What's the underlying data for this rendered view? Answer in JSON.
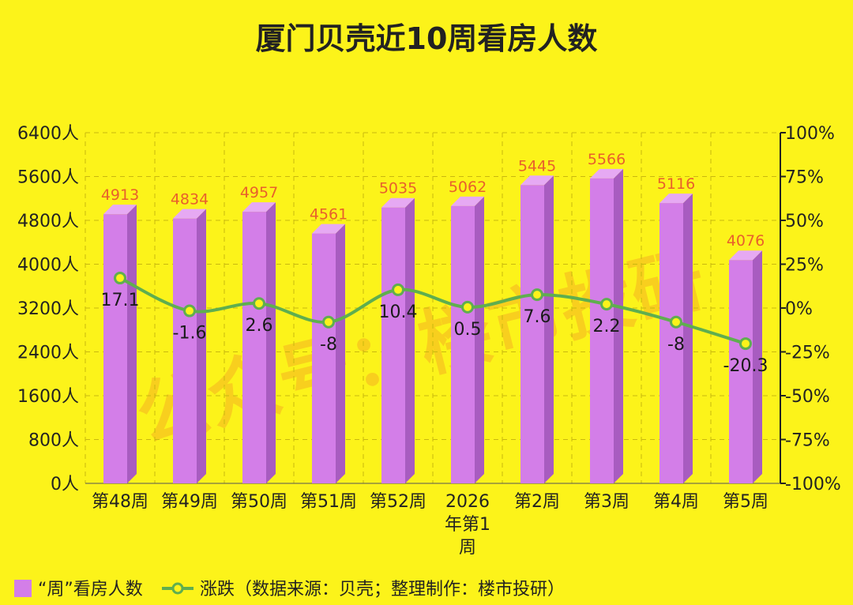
{
  "chart_data": {
    "type": "bar",
    "title": "厦门贝壳近10周看房人数",
    "categories": [
      "第48周",
      "第49周",
      "第50周",
      "第51周",
      "第52周",
      "2026\n年第1\n周",
      "第2周",
      "第3周",
      "第4周",
      "第5周"
    ],
    "category_lines": [
      [
        "第48周"
      ],
      [
        "第49周"
      ],
      [
        "第50周"
      ],
      [
        "第51周"
      ],
      [
        "第52周"
      ],
      [
        "2026",
        "年第1",
        "周"
      ],
      [
        "第2周"
      ],
      [
        "第3周"
      ],
      [
        "第4周"
      ],
      [
        "第5周"
      ]
    ],
    "series": [
      {
        "name": "“周”看房人数",
        "type": "bar",
        "axis": "left",
        "color": "#d37ee8",
        "values": [
          4913,
          4834,
          4957,
          4561,
          5035,
          5062,
          5445,
          5566,
          5116,
          4076
        ],
        "labels": [
          "4913",
          "4834",
          "4957",
          "4561",
          "5035",
          "5062",
          "5445",
          "5566",
          "5116",
          "4076"
        ]
      },
      {
        "name": "涨跌（数据来源：贝壳；整理制作：楼市投研）",
        "type": "line",
        "axis": "right",
        "color": "#5fae4f",
        "values": [
          17.1,
          -1.6,
          2.6,
          -8,
          10.4,
          0.5,
          7.6,
          2.2,
          -8,
          -20.3
        ],
        "labels": [
          "17.1",
          "-1.6",
          "2.6",
          "-8",
          "10.4",
          "0.5",
          "7.6",
          "2.2",
          "-8",
          "-20.3"
        ]
      }
    ],
    "left_axis": {
      "ylim": [
        0,
        6400
      ],
      "ticks": [
        0,
        800,
        1600,
        2400,
        3200,
        4000,
        4800,
        5600,
        6400
      ],
      "tick_labels": [
        "0人",
        "800人",
        "1600人",
        "2400人",
        "3200人",
        "4000人",
        "4800人",
        "5600人",
        "6400人"
      ]
    },
    "right_axis": {
      "ylim": [
        -100,
        100
      ],
      "ticks": [
        -100,
        -75,
        -50,
        -25,
        0,
        25,
        50,
        75,
        100
      ],
      "tick_labels": [
        "-100%",
        "-75%",
        "-50%",
        "-25%",
        "0%",
        "25%",
        "50%",
        "75%",
        "100%"
      ]
    },
    "grid": true,
    "legend_position": "bottom-left"
  },
  "watermark": "公众号：楼市投研",
  "colors": {
    "background": "#fcf31a",
    "bar_front": "#d37ee8",
    "bar_side": "#a85cc0",
    "bar_top": "#e6a9f3",
    "line": "#5fae4f",
    "bar_label": "#e8602c"
  }
}
